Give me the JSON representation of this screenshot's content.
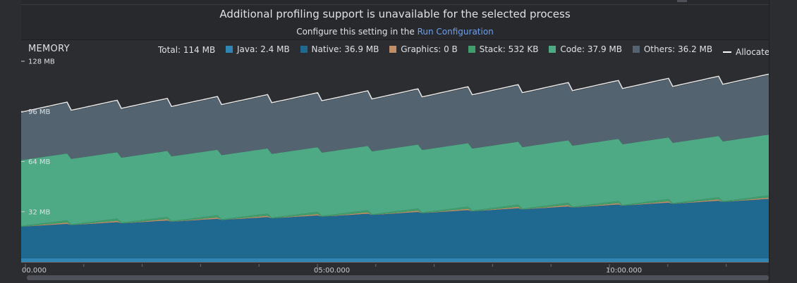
{
  "banner": {
    "title": "Additional profiling support is unavailable for the selected process",
    "subtitle_prefix": "Configure this setting in the ",
    "subtitle_link": "Run Configuration"
  },
  "memory": {
    "title": "MEMORY",
    "total": "Total: 114 MB",
    "legend": [
      {
        "label": "Java: 2.4 MB",
        "color": "#2f86b5"
      },
      {
        "label": "Native: 36.9 MB",
        "color": "#1f6890"
      },
      {
        "label": "Graphics: 0 B",
        "color": "#c08f68"
      },
      {
        "label": "Stack: 532 KB",
        "color": "#3f9e6c"
      },
      {
        "label": "Code: 37.9 MB",
        "color": "#4ea985"
      },
      {
        "label": "Others: 36.2 MB",
        "color": "#536470"
      }
    ],
    "allocated": "Allocated: N/A"
  },
  "chart_data": {
    "type": "area",
    "x_ticks": [
      "00.000",
      "05:00.000",
      "10:00.000"
    ],
    "y_ticks": [
      "128 MB",
      "96 MB",
      "64 MB",
      "32 MB"
    ],
    "ylim": [
      0,
      128
    ],
    "series": [
      {
        "name": "Java",
        "values": [
          2.4,
          2.4,
          2.4
        ],
        "color": "#2f86b5"
      },
      {
        "name": "Native",
        "values": [
          20,
          28,
          36.9
        ],
        "color": "#1f6890"
      },
      {
        "name": "Graphics",
        "values": [
          0,
          0,
          0
        ],
        "color": "#c08f68"
      },
      {
        "name": "Stack",
        "values": [
          0.5,
          0.5,
          0.5
        ],
        "color": "#3f9e6c"
      },
      {
        "name": "Code",
        "values": [
          42,
          40,
          37.9
        ],
        "color": "#4ea985"
      },
      {
        "name": "Others",
        "values": [
          30,
          33,
          36.2
        ],
        "color": "#536470"
      }
    ]
  }
}
